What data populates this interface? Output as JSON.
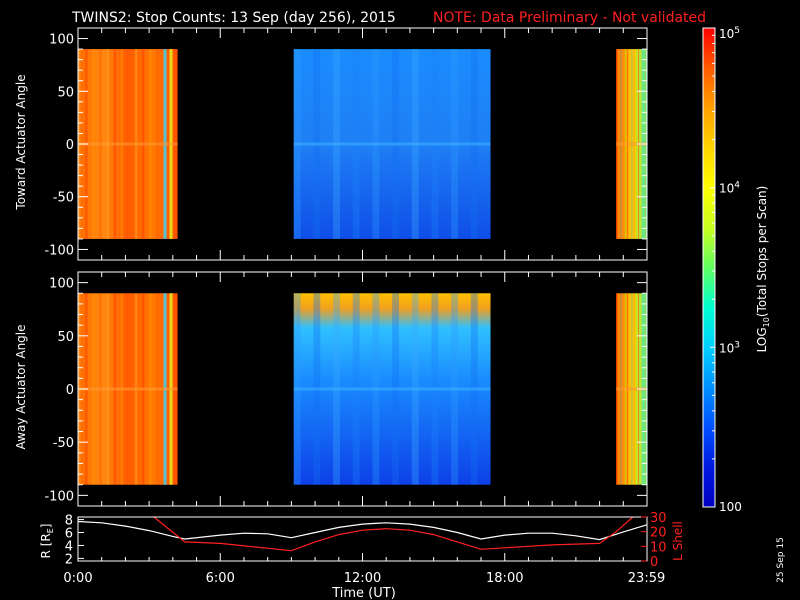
{
  "title": {
    "main": "TWINS2: Stop Counts: 13 Sep (day 256), 2015",
    "note": "NOTE: Data Preliminary - Not validated"
  },
  "colors": {
    "background": "#000000",
    "axis": "#ffffff",
    "note": "#ff2020",
    "lshell": "#ff2020",
    "radius": "#ffffff"
  },
  "stamp": "25 Sep 15",
  "chart_data": [
    {
      "type": "heatmap",
      "name": "toward",
      "ylabel": "Toward Actuator Angle",
      "ylim": [
        -110,
        110
      ],
      "yticks": [
        100,
        50,
        0,
        -50,
        -100
      ],
      "xlim": [
        0,
        24
      ],
      "data_coverage_hours": [
        [
          0,
          4.2
        ],
        [
          9.1,
          17.4
        ],
        [
          22.7,
          24
        ]
      ]
    },
    {
      "type": "heatmap",
      "name": "away",
      "ylabel": "Away Actuator Angle",
      "ylim": [
        -110,
        110
      ],
      "yticks": [
        100,
        50,
        0,
        -50,
        -100
      ],
      "xlim": [
        0,
        24
      ],
      "data_coverage_hours": [
        [
          0,
          4.2
        ],
        [
          9.1,
          17.4
        ],
        [
          22.7,
          24
        ]
      ]
    },
    {
      "type": "line",
      "name": "ephemeris",
      "xlabel": "Time (UT)",
      "xlim": [
        0,
        24
      ],
      "xticks": [
        "0:00",
        "6:00",
        "12:00",
        "18:00",
        "23:59"
      ],
      "xtick_hours": [
        0,
        6,
        12,
        18,
        23.98
      ],
      "left_axis": {
        "label": "R [R",
        "label_sub": "E",
        "label_end": "]",
        "ylim": [
          1.6,
          8.4
        ],
        "yticks": [
          2,
          4,
          6,
          8
        ]
      },
      "right_axis": {
        "label": "L Shell",
        "ylim": [
          0,
          30
        ],
        "yticks": [
          0,
          10,
          20,
          30
        ]
      },
      "series": [
        {
          "axis": "left",
          "x": [
            0,
            1,
            2,
            3,
            4,
            4.5,
            6,
            7,
            8,
            9,
            10,
            11,
            12,
            13,
            14,
            15,
            16,
            17,
            18,
            19,
            20,
            21,
            22,
            23,
            24
          ],
          "values": [
            7.7,
            7.5,
            7.0,
            6.3,
            5.4,
            5.0,
            5.6,
            5.9,
            5.8,
            5.2,
            6.0,
            6.8,
            7.3,
            7.5,
            7.3,
            6.8,
            6.0,
            5.0,
            5.6,
            5.9,
            5.9,
            5.5,
            4.9,
            6.1,
            7.2
          ]
        },
        {
          "axis": "right",
          "x": [
            3.2,
            4.5,
            6,
            9,
            10,
            11,
            12,
            13,
            14,
            15,
            16,
            17,
            18,
            19,
            20,
            21,
            22,
            22.7,
            23.4
          ],
          "values": [
            30,
            13,
            12,
            7,
            13,
            18,
            21,
            22,
            21,
            18,
            13,
            8,
            9,
            10,
            11,
            11.5,
            12,
            20,
            30
          ]
        }
      ]
    }
  ],
  "colorbar": {
    "label_log": "LOG",
    "label_log_sub": "10",
    "label_rest": "(Total Stops per Scan)",
    "scale": "log",
    "range": [
      100,
      100000
    ],
    "ticks": [
      {
        "value": 100000,
        "base": "10",
        "exp": "5"
      },
      {
        "value": 10000,
        "base": "10",
        "exp": "4"
      },
      {
        "value": 1000,
        "base": "10",
        "exp": "3"
      },
      {
        "value": 100,
        "text": "100"
      }
    ],
    "stops": [
      "#ff0000",
      "#ff5a00",
      "#ffa000",
      "#ffd400",
      "#ffff00",
      "#c8ff20",
      "#60ff60",
      "#00ffd0",
      "#00d0ff",
      "#0090ff",
      "#0050ff",
      "#0018e0",
      "#0000c0"
    ]
  }
}
